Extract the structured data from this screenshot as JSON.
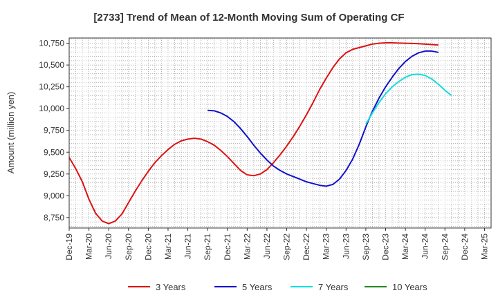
{
  "chart_data": {
    "type": "line",
    "title": "[2733]  Trend of Mean of 12-Month Moving Sum of Operating CF",
    "xlabel": "",
    "ylabel": "Amount (million yen)",
    "ylim": [
      8630,
      10810
    ],
    "yticks": [
      8750,
      9000,
      9250,
      9500,
      9750,
      10000,
      10250,
      10500,
      10750
    ],
    "ytick_labels": [
      "8,750",
      "9,000",
      "9,250",
      "9,500",
      "9,750",
      "10,000",
      "10,250",
      "10,500",
      "10,750"
    ],
    "x_start": "Dec-19",
    "x_end": "Mar-25",
    "x_tick_labels": [
      "Dec-19",
      "Mar-20",
      "Jun-20",
      "Sep-20",
      "Dec-20",
      "Mar-21",
      "Jun-21",
      "Sep-21",
      "Dec-21",
      "Mar-22",
      "Jun-22",
      "Sep-22",
      "Dec-22",
      "Mar-23",
      "Jun-23",
      "Sep-23",
      "Dec-23",
      "Mar-24",
      "Jun-24",
      "Sep-24",
      "Dec-24",
      "Mar-25"
    ],
    "grid": true,
    "legend_position": "bottom",
    "series": [
      {
        "name": "3 Years",
        "color": "#dd1111",
        "start_month_index": 0,
        "values": [
          9440,
          9310,
          9160,
          8960,
          8800,
          8710,
          8680,
          8710,
          8790,
          8920,
          9050,
          9170,
          9280,
          9380,
          9460,
          9530,
          9590,
          9630,
          9650,
          9660,
          9650,
          9620,
          9580,
          9520,
          9450,
          9370,
          9290,
          9240,
          9230,
          9250,
          9300,
          9380,
          9470,
          9570,
          9680,
          9800,
          9930,
          10070,
          10220,
          10350,
          10470,
          10570,
          10640,
          10680,
          10700,
          10720,
          10740,
          10750,
          10755,
          10755,
          10752,
          10750,
          10748,
          10745,
          10740,
          10735,
          10730
        ]
      },
      {
        "name": "5 Years",
        "color": "#1111cc",
        "start_month_index": 21,
        "values": [
          9980,
          9975,
          9950,
          9910,
          9850,
          9770,
          9680,
          9580,
          9490,
          9410,
          9340,
          9290,
          9250,
          9220,
          9190,
          9160,
          9140,
          9120,
          9110,
          9130,
          9190,
          9290,
          9420,
          9590,
          9790,
          9970,
          10120,
          10250,
          10360,
          10460,
          10540,
          10600,
          10640,
          10660,
          10660,
          10645
        ]
      },
      {
        "name": "7 Years",
        "color": "#11dddd",
        "start_month_index": 45,
        "values": [
          9820,
          9950,
          10070,
          10170,
          10250,
          10310,
          10360,
          10390,
          10395,
          10380,
          10340,
          10280,
          10210,
          10150
        ]
      },
      {
        "name": "10 Years",
        "color": "#228822",
        "start_month_index": 0,
        "values": []
      }
    ]
  }
}
